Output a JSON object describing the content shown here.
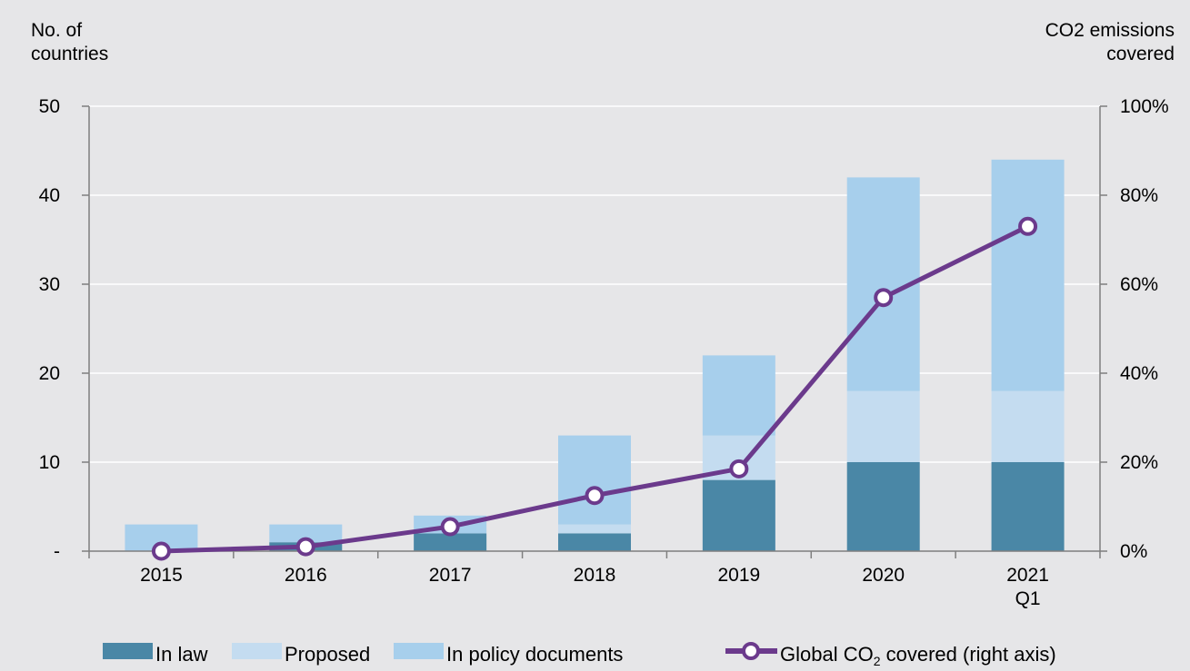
{
  "chart_data": {
    "type": "bar",
    "stacked": true,
    "categories": [
      "2015",
      "2016",
      "2017",
      "2018",
      "2019",
      "2020",
      "2021 Q1"
    ],
    "series": [
      {
        "name": "In law",
        "values": [
          0,
          1,
          2,
          2,
          8,
          10,
          10
        ],
        "color": "#4a87a6"
      },
      {
        "name": "Proposed",
        "values": [
          0,
          0,
          0,
          1,
          5,
          8,
          8
        ],
        "color": "#c4dcf0"
      },
      {
        "name": "In policy documents",
        "values": [
          3,
          2,
          2,
          10,
          9,
          24,
          26
        ],
        "color": "#a7cfec"
      }
    ],
    "line_series": {
      "name_parts": [
        "Global CO",
        "2",
        " covered (right axis)"
      ],
      "axis": "right",
      "values": [
        0.0,
        0.01,
        0.055,
        0.125,
        0.185,
        0.57,
        0.73
      ],
      "color": "#6b3a8c"
    },
    "y_left": {
      "title_lines": [
        "No. of",
        "countries"
      ],
      "range": [
        0,
        50
      ],
      "ticks": [
        0,
        10,
        20,
        30,
        40,
        50
      ],
      "tick_labels": [
        "-",
        "10",
        "20",
        "30",
        "40",
        "50"
      ]
    },
    "y_right": {
      "title_lines": [
        "CO2 emissions",
        "covered"
      ],
      "range": [
        0,
        1
      ],
      "ticks": [
        0,
        0.2,
        0.4,
        0.6,
        0.8,
        1.0
      ],
      "tick_labels": [
        "0%",
        "20%",
        "40%",
        "60%",
        "80%",
        "100%"
      ]
    },
    "x_tick_labels": [
      [
        "2015"
      ],
      [
        "2016"
      ],
      [
        "2017"
      ],
      [
        "2018"
      ],
      [
        "2019"
      ],
      [
        "2020"
      ],
      [
        "2021",
        "Q1"
      ]
    ],
    "grid": true,
    "legend_position": "bottom"
  },
  "colors": {
    "background": "#e6e6e8",
    "grid": "#ffffff",
    "axis": "#7f7f7f"
  }
}
